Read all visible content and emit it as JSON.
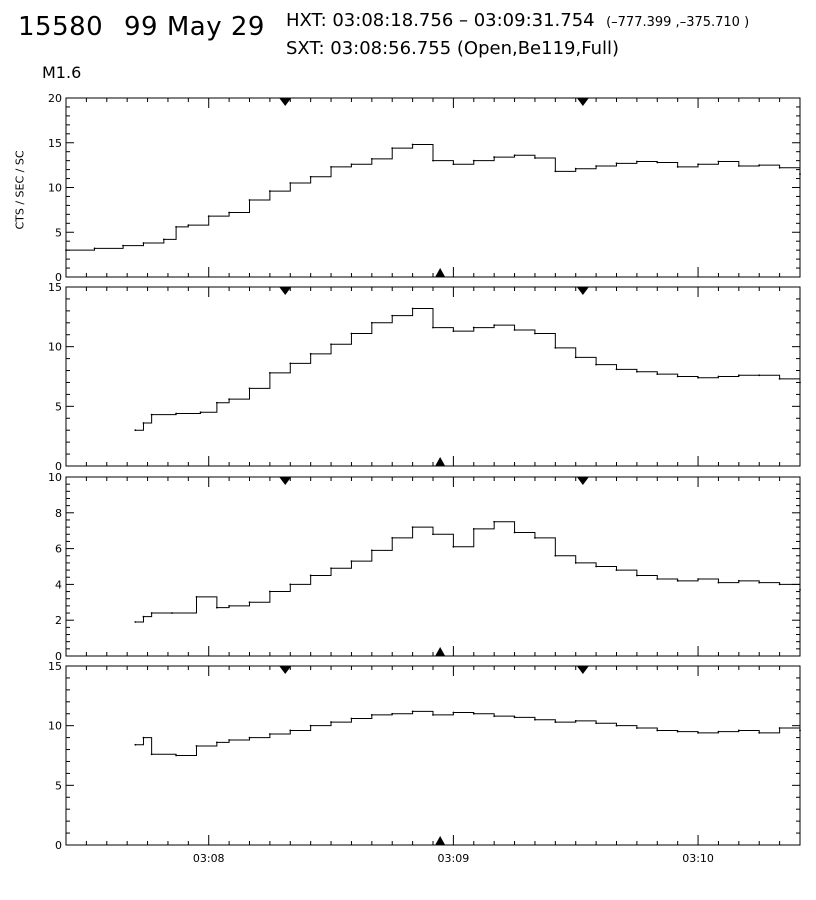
{
  "header": {
    "event_id": "15580",
    "date": "99 May 29",
    "hxt": "HXT: 03:08:18.756 – 03:09:31.754",
    "hxt_coords": "(–777.399 ,–375.710 )",
    "sxt": "SXT: 03:08:56.755 (Open,Be119,Full)",
    "flare_class": "M1.6"
  },
  "chart_data": {
    "type": "line",
    "title": "",
    "ylabel": "CTS / SEC / SC",
    "xlim": [
      "03:07:25",
      "03:10:25"
    ],
    "x_ticks": [
      "03:08",
      "03:09",
      "03:10"
    ],
    "markers": {
      "hxt_interval": [
        "03:08:18.756",
        "03:09:31.754"
      ],
      "sxt_time": "03:08:56.755"
    },
    "panels": [
      {
        "ylim": [
          0,
          20
        ],
        "yticks": [
          "0",
          "5",
          "10",
          "15",
          "20"
        ],
        "step": "stair",
        "series": [
          {
            "x": [
              "03:07:25",
              "03:07:32",
              "03:07:39",
              "03:07:44",
              "03:07:49",
              "03:07:52",
              "03:07:55",
              "03:08:00",
              "03:08:05",
              "03:08:10",
              "03:08:15",
              "03:08:20",
              "03:08:25",
              "03:08:30",
              "03:08:35",
              "03:08:40",
              "03:08:45",
              "03:08:50",
              "03:08:55",
              "03:09:00",
              "03:09:05",
              "03:09:10",
              "03:09:15",
              "03:09:20",
              "03:09:25",
              "03:09:30",
              "03:09:35",
              "03:09:40",
              "03:09:45",
              "03:09:50",
              "03:09:55",
              "03:10:00",
              "03:10:05",
              "03:10:10",
              "03:10:15",
              "03:10:20",
              "03:10:25"
            ],
            "values": [
              3.0,
              3.2,
              3.5,
              3.8,
              4.2,
              5.6,
              5.8,
              6.8,
              7.2,
              8.6,
              9.6,
              10.5,
              11.2,
              12.3,
              12.6,
              13.2,
              14.4,
              14.8,
              13.0,
              12.6,
              13.0,
              13.4,
              13.6,
              13.3,
              11.8,
              12.1,
              12.4,
              12.7,
              12.9,
              12.8,
              12.3,
              12.6,
              12.9,
              12.4,
              12.5,
              12.2,
              11.5
            ]
          }
        ]
      },
      {
        "ylim": [
          0,
          15
        ],
        "yticks": [
          "0",
          "5",
          "10",
          "15"
        ],
        "step": "stair",
        "series": [
          {
            "x": [
              "03:07:42",
              "03:07:44",
              "03:07:46",
              "03:07:52",
              "03:07:58",
              "03:08:02",
              "03:08:05",
              "03:08:10",
              "03:08:15",
              "03:08:20",
              "03:08:25",
              "03:08:30",
              "03:08:35",
              "03:08:40",
              "03:08:45",
              "03:08:50",
              "03:08:55",
              "03:09:00",
              "03:09:05",
              "03:09:10",
              "03:09:15",
              "03:09:20",
              "03:09:25",
              "03:09:30",
              "03:09:35",
              "03:09:40",
              "03:09:45",
              "03:09:50",
              "03:09:55",
              "03:10:00",
              "03:10:05",
              "03:10:10",
              "03:10:15",
              "03:10:20",
              "03:10:25"
            ],
            "values": [
              3.0,
              3.6,
              4.3,
              4.4,
              4.5,
              5.3,
              5.6,
              6.5,
              7.8,
              8.6,
              9.4,
              10.2,
              11.1,
              12.0,
              12.6,
              13.2,
              11.6,
              11.3,
              11.6,
              11.8,
              11.4,
              11.1,
              9.9,
              9.1,
              8.5,
              8.1,
              7.9,
              7.7,
              7.5,
              7.4,
              7.5,
              7.6,
              7.6,
              7.3,
              7.0
            ]
          }
        ]
      },
      {
        "ylim": [
          0,
          10
        ],
        "yticks": [
          "0",
          "2",
          "4",
          "6",
          "8",
          "10"
        ],
        "step": "stair",
        "series": [
          {
            "x": [
              "03:07:42",
              "03:07:44",
              "03:07:46",
              "03:07:51",
              "03:07:57",
              "03:08:02",
              "03:08:05",
              "03:08:10",
              "03:08:15",
              "03:08:20",
              "03:08:25",
              "03:08:30",
              "03:08:35",
              "03:08:40",
              "03:08:45",
              "03:08:50",
              "03:08:55",
              "03:09:00",
              "03:09:05",
              "03:09:10",
              "03:09:15",
              "03:09:20",
              "03:09:25",
              "03:09:30",
              "03:09:35",
              "03:09:40",
              "03:09:45",
              "03:09:50",
              "03:09:55",
              "03:10:00",
              "03:10:05",
              "03:10:10",
              "03:10:15",
              "03:10:20",
              "03:10:25"
            ],
            "values": [
              1.9,
              2.2,
              2.4,
              2.4,
              3.3,
              2.7,
              2.8,
              3.0,
              3.6,
              4.0,
              4.5,
              4.9,
              5.3,
              5.9,
              6.6,
              7.2,
              6.8,
              6.1,
              7.1,
              7.5,
              6.9,
              6.6,
              5.6,
              5.2,
              5.0,
              4.8,
              4.5,
              4.3,
              4.2,
              4.3,
              4.1,
              4.2,
              4.1,
              4.0,
              3.7
            ]
          }
        ]
      },
      {
        "ylim": [
          0,
          15
        ],
        "yticks": [
          "0",
          "5",
          "10",
          "15"
        ],
        "step": "stair",
        "series": [
          {
            "x": [
              "03:07:42",
              "03:07:44",
              "03:07:46",
              "03:07:52",
              "03:07:57",
              "03:08:02",
              "03:08:05",
              "03:08:10",
              "03:08:15",
              "03:08:20",
              "03:08:25",
              "03:08:30",
              "03:08:35",
              "03:08:40",
              "03:08:45",
              "03:08:50",
              "03:08:55",
              "03:09:00",
              "03:09:05",
              "03:09:10",
              "03:09:15",
              "03:09:20",
              "03:09:25",
              "03:09:30",
              "03:09:35",
              "03:09:40",
              "03:09:45",
              "03:09:50",
              "03:09:55",
              "03:10:00",
              "03:10:05",
              "03:10:10",
              "03:10:15",
              "03:10:20",
              "03:10:25"
            ],
            "values": [
              8.4,
              9.0,
              7.6,
              7.5,
              8.3,
              8.6,
              8.8,
              9.0,
              9.3,
              9.6,
              10.0,
              10.3,
              10.6,
              10.9,
              11.0,
              11.2,
              10.9,
              11.1,
              11.0,
              10.8,
              10.7,
              10.5,
              10.3,
              10.4,
              10.2,
              10.0,
              9.8,
              9.6,
              9.5,
              9.4,
              9.5,
              9.6,
              9.4,
              9.8,
              9.6
            ]
          }
        ]
      }
    ]
  }
}
